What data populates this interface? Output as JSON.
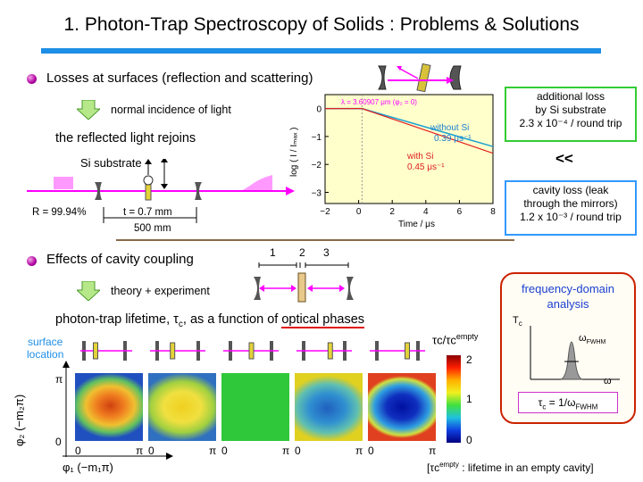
{
  "title": "1. Photon-Trap Spectroscopy of Solids : Problems & Solutions",
  "section1": {
    "heading": "Losses at surfaces (reflection and scattering)",
    "incidence_note": "normal incidence of light",
    "rejoin_text": "the reflected light rejoins",
    "si_label": "Si substrate",
    "r_label": "R = 99.94%",
    "t_label": "t = 0.7 mm",
    "length_label": "500 mm"
  },
  "plot": {
    "lambda_label": "λ = 3.60907 μm (φ₂ = 0)",
    "without_label": "without Si",
    "without_value": "0.39 μs⁻¹",
    "with_label": "with Si",
    "with_value": "0.45 μs⁻¹",
    "ylabel": "log ( I / Iₘₐₓ )",
    "xlabel": "Time / μs",
    "yticks": [
      "0",
      "−1",
      "−2",
      "−3"
    ],
    "xticks": [
      "−2",
      "0",
      "2",
      "4",
      "6",
      "8"
    ]
  },
  "loss_box": {
    "line1": "additional loss",
    "line2": "by Si substrate",
    "line3": "2.3 x 10⁻⁴ / round trip"
  },
  "compare": "<<",
  "cavity_box": {
    "line1": "cavity loss (leak",
    "line2": "through the mirrors)",
    "line3": "1.2 x 10⁻³ / round trip"
  },
  "section2": {
    "heading": "Effects of cavity coupling",
    "seg1": "1",
    "seg2": "2",
    "seg3": "3",
    "theory_note": "theory + experiment",
    "lifetime_prefix": "photon-trap lifetime, τ",
    "lifetime_sub": "c",
    "lifetime_mid": ", as a function of ",
    "lifetime_link": "optical phases",
    "surface_label_1": "surface",
    "surface_label_2": "location",
    "colorbar_label": "τc/τc",
    "colorbar_sup": "empty",
    "colorbar_ticks": [
      "2",
      "1",
      "0"
    ],
    "axis_zero": "0",
    "axis_pi": "π",
    "phi2_label": "φ₂ (−m₂π)",
    "phi1_label": "φ₁ (−m₁π)",
    "footnote": "[τc",
    "footnote_sup": "empty",
    "footnote_rest": " : lifetime in an empty cavity]"
  },
  "freq_box": {
    "title1": "frequency-domain",
    "title2": "analysis",
    "tc": "T",
    "tc_sub": "c",
    "fwhm": "ω",
    "fwhm_sub": "FWHM",
    "omega": "ω",
    "formula": "τ",
    "formula_sub": "c",
    "formula_mid": " = 1/ω",
    "formula_sub2": "FWHM"
  },
  "colors": {
    "accent": "#1e8fe6",
    "bullet": "#b000a0",
    "magenta": "#ff00ff",
    "green_box": "#33cc33",
    "blue_box": "#3399ff",
    "red_box": "#cc2200"
  }
}
